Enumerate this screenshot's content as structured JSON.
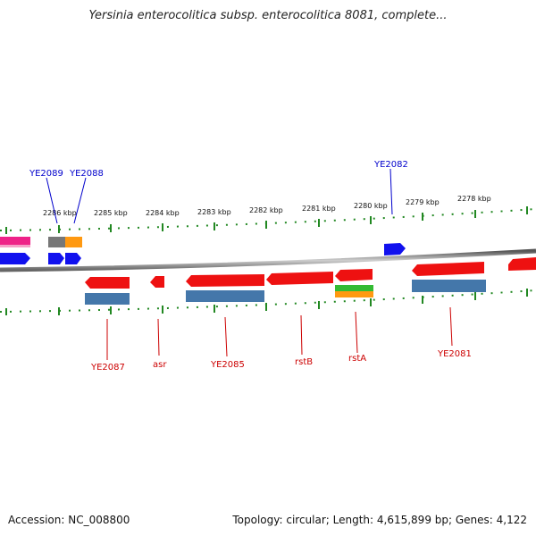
{
  "title": "Yersinia enterocolitica subsp. enterocolitica 8081, complete...",
  "footer": {
    "accession": "Accession: NC_008800",
    "info": "Topology: circular; Length: 4,615,899 bp; Genes: 4,122"
  },
  "colors": {
    "gene_red": "#ee1111",
    "gene_blue": "#1111ee",
    "gene_magenta": "#ee2288",
    "gene_gray": "#777777",
    "gene_orange": "#ff9911",
    "gene_green": "#33bb33",
    "cds_steelblue": "#4477aa",
    "ruler_green": "#228822",
    "backbone": "#888888",
    "label_blue": "#0000cc",
    "label_red": "#cc0000"
  },
  "kbp_labels": [
    "2286 kbp",
    "2285 kbp",
    "2284 kbp",
    "2283 kbp",
    "2282 kbp",
    "2281 kbp",
    "2280 kbp",
    "2279 kbp",
    "2278 kbp"
  ],
  "top_gene_labels": [
    "YE2089",
    "YE2088",
    "YE2082"
  ],
  "bottom_gene_labels": [
    "YE2087",
    "asr",
    "YE2085",
    "rstB",
    "rstA",
    "YE2081"
  ]
}
